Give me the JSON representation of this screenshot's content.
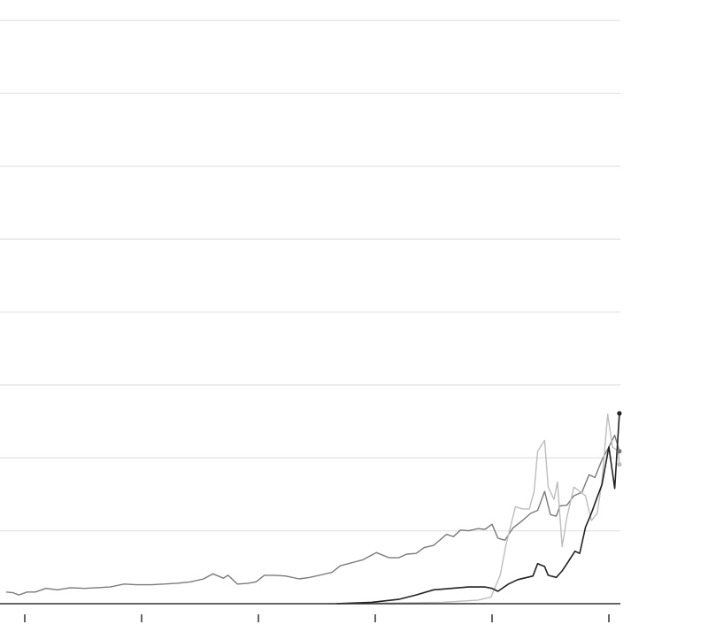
{
  "chart_data": {
    "type": "line",
    "title": "",
    "xlabel": "",
    "ylabel": "",
    "xlim": [
      -0.16,
      5.09
    ],
    "ylim": [
      0,
      8
    ],
    "x_ticks": [
      0,
      1,
      2,
      3,
      4,
      5
    ],
    "y_gridlines": [
      1,
      2,
      3,
      4,
      5,
      6,
      7,
      8
    ],
    "grid": true,
    "legend": "none",
    "series": [
      {
        "color": "#7a7a7a",
        "end_marker": true,
        "x": [
          -0.16,
          -0.1,
          -0.05,
          0.02,
          0.09,
          0.18,
          0.28,
          0.39,
          0.51,
          0.62,
          0.73,
          0.85,
          0.96,
          1.08,
          1.19,
          1.3,
          1.42,
          1.53,
          1.61,
          1.7,
          1.74,
          1.82,
          1.91,
          1.98,
          2.05,
          2.14,
          2.23,
          2.35,
          2.44,
          2.55,
          2.63,
          2.7,
          2.82,
          2.89,
          3.01,
          3.12,
          3.2,
          3.27,
          3.35,
          3.42,
          3.5,
          3.61,
          3.67,
          3.73,
          3.8,
          3.88,
          3.94,
          4.0,
          4.05,
          4.11,
          4.18,
          4.26,
          4.33,
          4.39,
          4.45,
          4.5,
          4.55,
          4.58,
          4.64,
          4.7,
          4.77,
          4.83,
          4.88,
          4.94,
          5.0,
          5.05,
          5.09
        ],
        "y": [
          0.16,
          0.15,
          0.12,
          0.16,
          0.16,
          0.21,
          0.19,
          0.22,
          0.21,
          0.22,
          0.23,
          0.27,
          0.26,
          0.26,
          0.27,
          0.28,
          0.3,
          0.34,
          0.41,
          0.35,
          0.39,
          0.27,
          0.28,
          0.3,
          0.39,
          0.39,
          0.38,
          0.34,
          0.36,
          0.4,
          0.43,
          0.52,
          0.57,
          0.6,
          0.7,
          0.63,
          0.63,
          0.68,
          0.69,
          0.77,
          0.8,
          0.95,
          0.92,
          1.01,
          1.0,
          1.03,
          1.02,
          1.09,
          0.9,
          0.87,
          1.04,
          1.14,
          1.24,
          1.28,
          1.54,
          1.22,
          1.2,
          1.34,
          1.35,
          1.48,
          1.53,
          1.77,
          1.73,
          1.97,
          2.15,
          2.31,
          2.09
        ]
      },
      {
        "color": "#bdbdbd",
        "end_marker": true,
        "x": [
          2.6,
          3.58,
          3.88,
          3.99,
          4.07,
          4.12,
          4.2,
          4.26,
          4.32,
          4.36,
          4.39,
          4.45,
          4.48,
          4.53,
          4.56,
          4.6,
          4.64,
          4.7,
          4.75,
          4.8,
          4.85,
          4.9,
          4.94,
          4.99,
          5.03,
          5.08,
          5.09
        ],
        "y": [
          0,
          0.02,
          0.05,
          0.09,
          0.39,
          0.81,
          1.33,
          1.3,
          1.3,
          1.54,
          2.09,
          2.24,
          1.6,
          1.43,
          1.67,
          0.78,
          1.18,
          1.6,
          1.54,
          1.48,
          1.14,
          1.24,
          1.67,
          2.6,
          2.15,
          2.09,
          1.91
        ]
      },
      {
        "color": "#222222",
        "end_marker": true,
        "x": [
          2.67,
          2.97,
          3.2,
          3.35,
          3.5,
          3.65,
          3.8,
          3.94,
          4.0,
          4.05,
          4.14,
          4.22,
          4.3,
          4.35,
          4.39,
          4.45,
          4.48,
          4.55,
          4.6,
          4.65,
          4.71,
          4.75,
          4.8,
          4.85,
          4.9,
          4.94,
          5.0,
          5.05,
          5.09
        ],
        "y": [
          0,
          0.02,
          0.06,
          0.12,
          0.19,
          0.21,
          0.23,
          0.23,
          0.21,
          0.17,
          0.27,
          0.33,
          0.36,
          0.38,
          0.55,
          0.51,
          0.39,
          0.36,
          0.45,
          0.57,
          0.72,
          0.69,
          1.05,
          1.24,
          1.46,
          1.63,
          2.15,
          1.58,
          2.61
        ]
      }
    ]
  }
}
